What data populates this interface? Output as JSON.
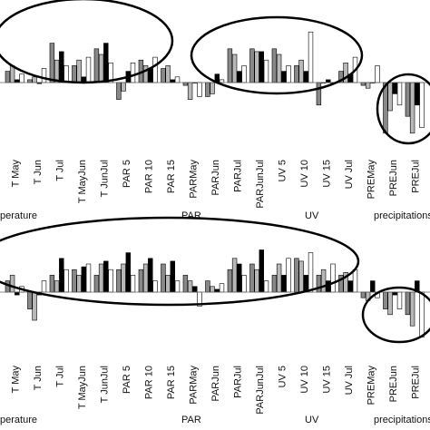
{
  "chart_data": [
    {
      "type": "bar",
      "categories": [
        "T May",
        "T Jun",
        "T Jul",
        "T MayJun",
        "T JunJul",
        "PAR 5",
        "PAR 10",
        "PAR 15",
        "PARMay",
        "PARJun",
        "PARJul",
        "PARJunJul",
        "UV 5",
        "UV 10",
        "UV 15",
        "UV Jul",
        "PREMay",
        "PREJun",
        "PREJul"
      ],
      "group_labels": [
        "perature",
        "PAR",
        "UV",
        "precipitations"
      ],
      "series": [
        {
          "color": "#888888",
          "values": [
            0.2,
            0.05,
            0.7,
            0.3,
            0.6,
            -0.3,
            0.4,
            0.25,
            -0.05,
            -0.25,
            0.6,
            0.6,
            0.6,
            0.3,
            -0.4,
            0.2,
            -0.05,
            -0.9,
            -0.6
          ]
        },
        {
          "color": "#b8b8b8",
          "values": [
            0.3,
            0.1,
            0.4,
            0.4,
            0.5,
            -0.15,
            0.3,
            0.3,
            -0.3,
            -0.2,
            0.5,
            0.55,
            0.5,
            0.4,
            0.0,
            0.35,
            -0.1,
            -0.5,
            -0.9
          ]
        },
        {
          "color": "#000000",
          "values": [
            0.05,
            -0.02,
            0.55,
            0.1,
            0.7,
            0.2,
            0.25,
            0.05,
            0.0,
            0.15,
            0.2,
            0.55,
            0.2,
            0.2,
            0.05,
            0.15,
            0.0,
            -0.2,
            -0.4
          ]
        },
        {
          "color": "#ffffff",
          "values": [
            0.15,
            0.25,
            0.3,
            0.45,
            0.35,
            0.35,
            0.45,
            0.1,
            -0.25,
            0.05,
            0.3,
            0.4,
            0.3,
            0.9,
            0.0,
            0.45,
            0.3,
            -0.4,
            -0.8
          ]
        }
      ],
      "circles": 3
    },
    {
      "type": "bar",
      "categories": [
        "T May",
        "T Jun",
        "T Jul",
        "T MayJun",
        "T JunJul",
        "PAR 5",
        "PAR 10",
        "PAR 15",
        "PARMay",
        "PARJun",
        "PARJul",
        "PARJunJul",
        "UV 5",
        "UV 10",
        "UV 15",
        "UV Jul",
        "PREMay",
        "PREJun",
        "PREJul"
      ],
      "group_labels": [
        "perature",
        "PAR",
        "UV",
        "precipitations"
      ],
      "series": [
        {
          "color": "#888888",
          "values": [
            0.2,
            -0.3,
            0.3,
            0.4,
            0.3,
            0.4,
            0.4,
            0.5,
            0.3,
            0.2,
            0.4,
            0.5,
            0.3,
            0.6,
            0.3,
            0.3,
            -0.1,
            -0.3,
            -0.4
          ]
        },
        {
          "color": "#b8b8b8",
          "values": [
            0.3,
            -0.5,
            0.2,
            0.3,
            0.5,
            0.5,
            0.5,
            0.3,
            0.2,
            0.1,
            0.6,
            0.4,
            0.5,
            0.55,
            0.4,
            0.35,
            -0.15,
            -0.4,
            -0.6
          ]
        },
        {
          "color": "#000000",
          "values": [
            -0.05,
            -0.05,
            0.6,
            0.45,
            0.55,
            0.7,
            0.6,
            0.55,
            0.1,
            0.05,
            0.5,
            0.75,
            0.3,
            0.3,
            0.2,
            0.2,
            0.2,
            -0.05,
            0.2
          ]
        },
        {
          "color": "#ffffff",
          "values": [
            0.1,
            0.2,
            0.4,
            0.5,
            0.4,
            0.3,
            0.2,
            0.2,
            -0.25,
            0.15,
            0.3,
            0.2,
            0.6,
            0.7,
            0.5,
            0.4,
            -0.1,
            -0.3,
            -0.8
          ]
        }
      ],
      "circles": 2
    }
  ]
}
